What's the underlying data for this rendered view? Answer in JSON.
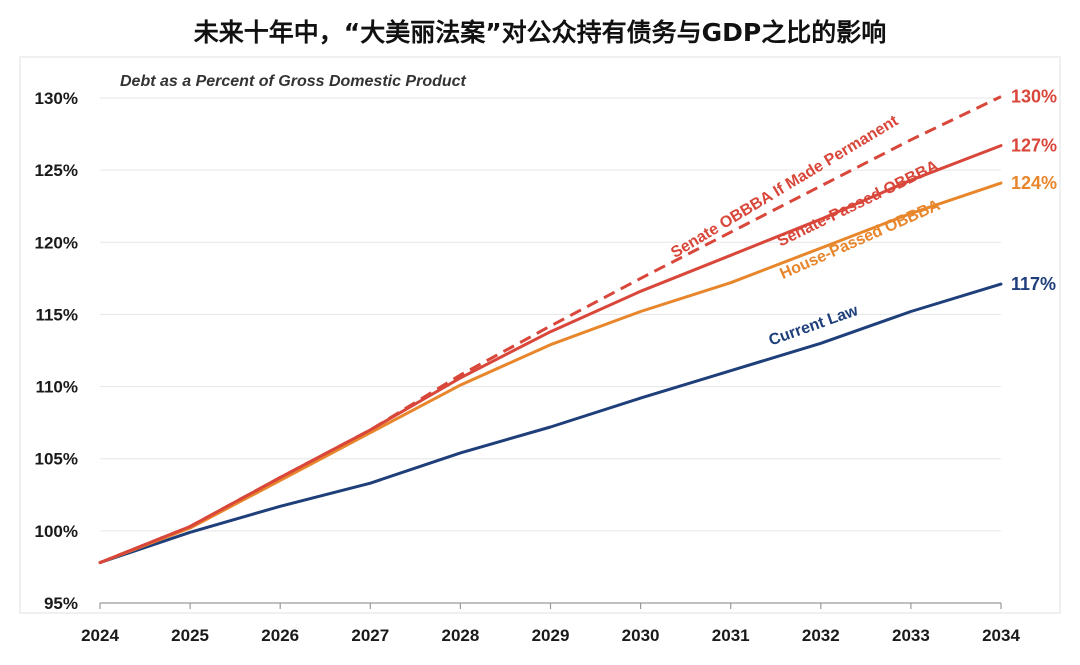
{
  "page": {
    "title": "未来十年中，“大美丽法案”对公众持有债务与GDP之比的影响"
  },
  "chart_data": {
    "type": "line",
    "title": "未来十年中，“大美丽法案”对公众持有债务与GDP之比的影响",
    "subtitle": "Debt as a Percent of Gross Domestic Product",
    "x": [
      2024,
      2025,
      2026,
      2027,
      2028,
      2029,
      2030,
      2031,
      2032,
      2033,
      2034
    ],
    "x_tick_labels": [
      "2024",
      "2025",
      "2026",
      "2027",
      "2028",
      "2029",
      "2030",
      "2031",
      "2032",
      "2033",
      "2034"
    ],
    "ylim": [
      95,
      130
    ],
    "y_ticks": [
      95,
      100,
      105,
      110,
      115,
      120,
      125,
      130
    ],
    "y_tick_labels": [
      "95%",
      "100%",
      "105%",
      "110%",
      "115%",
      "120%",
      "125%",
      "130%"
    ],
    "grid": true,
    "series": [
      {
        "name": "Current Law",
        "color": "#1f3f7a",
        "dashed": false,
        "values": [
          97.8,
          99.9,
          101.7,
          103.3,
          105.4,
          107.2,
          109.2,
          111.1,
          113.0,
          115.2,
          117.1
        ],
        "end_label": "117%"
      },
      {
        "name": "House-Passed OBBBA",
        "color": "#e8862c",
        "dashed": false,
        "values": [
          97.8,
          100.2,
          103.5,
          106.8,
          110.1,
          112.9,
          115.2,
          117.2,
          119.6,
          122.0,
          124.1
        ],
        "end_label": "124%"
      },
      {
        "name": "Senate-Passed OBBBA",
        "color": "#d9463a",
        "dashed": false,
        "values": [
          97.8,
          100.3,
          103.7,
          107.0,
          110.6,
          113.8,
          116.6,
          119.1,
          121.6,
          124.3,
          126.7
        ],
        "end_label": "127%"
      },
      {
        "name": "Senate OBBBA If Made Permanent",
        "color": "#d9463a",
        "dashed": true,
        "values": [
          97.8,
          100.3,
          103.7,
          107.0,
          110.8,
          114.2,
          117.5,
          120.7,
          123.9,
          127.1,
          130.1
        ],
        "end_label": "130%"
      }
    ]
  }
}
